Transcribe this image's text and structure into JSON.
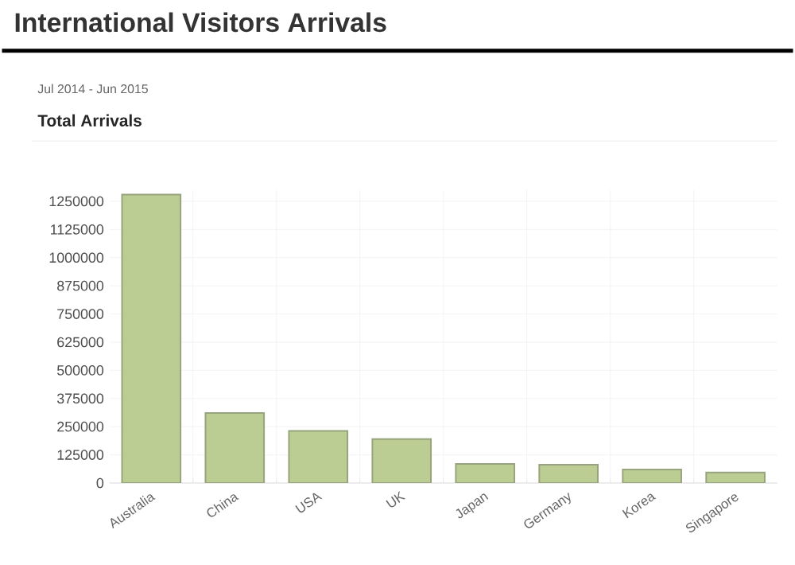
{
  "chart_data": {
    "type": "bar",
    "title": "International Visitors Arrivals",
    "subtitle": "Jul 2014 - Jun 2015",
    "annotations": [
      "Total Arrivals"
    ],
    "categories": [
      "Australia",
      "China",
      "USA",
      "UK",
      "Japan",
      "Germany",
      "Korea",
      "Singapore"
    ],
    "values": [
      1280000,
      311000,
      231000,
      195000,
      85000,
      81000,
      60000,
      47000
    ],
    "color": "#bccd93",
    "ylim": [
      0,
      1300000
    ],
    "yticks": [
      0,
      125000,
      250000,
      375000,
      500000,
      625000,
      750000,
      875000,
      1000000,
      1125000,
      1250000
    ],
    "grid": true
  }
}
